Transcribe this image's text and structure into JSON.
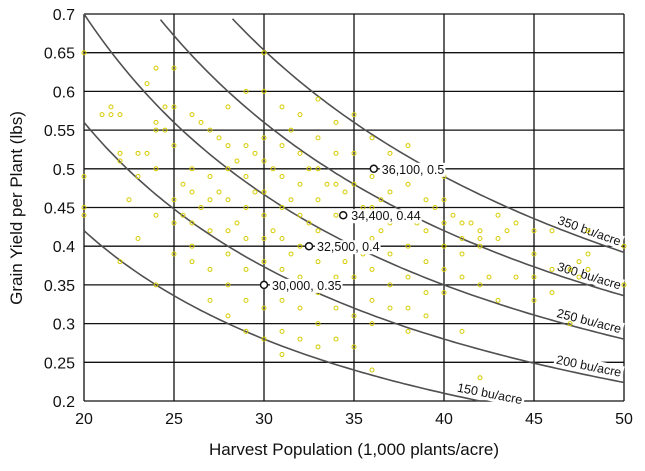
{
  "chart_data": {
    "type": "scatter",
    "title": "",
    "xlabel": "Harvest Population (1,000 plants/acre)",
    "ylabel": "Grain Yield per Plant (lbs)",
    "xlim": [
      20,
      50
    ],
    "ylim": [
      0.2,
      0.7
    ],
    "xticks": [
      20,
      25,
      30,
      35,
      40,
      45,
      50
    ],
    "yticks": [
      0.2,
      0.25,
      0.3,
      0.35,
      0.4,
      0.45,
      0.5,
      0.55,
      0.6,
      0.65,
      0.7
    ],
    "ytick_labels": [
      "0.2",
      "0.25",
      "0.3",
      "0.35",
      "0.4",
      "0.45",
      "0.5",
      "0.55",
      "0.6",
      "0.65",
      "0.7"
    ],
    "grid": true,
    "point_color": "#d8cc00",
    "curve_color": "#505050",
    "iso_yield_curves": [
      {
        "label": "150 bu/acre",
        "bu_per_acre": 150
      },
      {
        "label": "200 bu/acre",
        "bu_per_acre": 200
      },
      {
        "label": "250 bu/acre",
        "bu_per_acre": 250
      },
      {
        "label": "300 bu/acre",
        "bu_per_acre": 300
      },
      {
        "label": "350 bu/acre",
        "bu_per_acre": 350
      }
    ],
    "highlighted_points": [
      {
        "x": 36.1,
        "y": 0.5,
        "label": "36,100, 0.5"
      },
      {
        "x": 34.4,
        "y": 0.44,
        "label": "34,400, 0.44"
      },
      {
        "x": 32.5,
        "y": 0.4,
        "label": "32,500, 0.4"
      },
      {
        "x": 30.0,
        "y": 0.35,
        "label": "30,000, 0.35"
      }
    ],
    "points": [
      [
        20,
        0.65
      ],
      [
        20,
        0.49
      ],
      [
        20,
        0.45
      ],
      [
        20,
        0.44
      ],
      [
        21,
        0.57
      ],
      [
        21.5,
        0.58
      ],
      [
        21.5,
        0.57
      ],
      [
        22,
        0.57
      ],
      [
        22,
        0.52
      ],
      [
        22,
        0.51
      ],
      [
        22,
        0.38
      ],
      [
        22.5,
        0.46
      ],
      [
        23,
        0.52
      ],
      [
        23,
        0.49
      ],
      [
        23,
        0.41
      ],
      [
        23.5,
        0.61
      ],
      [
        23.5,
        0.52
      ],
      [
        24,
        0.63
      ],
      [
        24,
        0.56
      ],
      [
        24,
        0.55
      ],
      [
        24,
        0.5
      ],
      [
        24,
        0.44
      ],
      [
        24,
        0.35
      ],
      [
        24.5,
        0.58
      ],
      [
        24.5,
        0.55
      ],
      [
        25,
        0.63
      ],
      [
        25,
        0.58
      ],
      [
        25,
        0.53
      ],
      [
        25,
        0.46
      ],
      [
        25,
        0.43
      ],
      [
        25,
        0.39
      ],
      [
        25.5,
        0.48
      ],
      [
        25.5,
        0.44
      ],
      [
        26,
        0.57
      ],
      [
        26,
        0.5
      ],
      [
        26,
        0.47
      ],
      [
        26,
        0.43
      ],
      [
        26,
        0.4
      ],
      [
        26,
        0.38
      ],
      [
        26.5,
        0.56
      ],
      [
        26.5,
        0.45
      ],
      [
        27,
        0.55
      ],
      [
        27,
        0.49
      ],
      [
        27,
        0.46
      ],
      [
        27,
        0.42
      ],
      [
        27,
        0.37
      ],
      [
        27,
        0.33
      ],
      [
        27.5,
        0.54
      ],
      [
        27.5,
        0.47
      ],
      [
        28,
        0.58
      ],
      [
        28,
        0.53
      ],
      [
        28,
        0.5
      ],
      [
        28,
        0.46
      ],
      [
        28,
        0.42
      ],
      [
        28,
        0.39
      ],
      [
        28,
        0.35
      ],
      [
        28,
        0.31
      ],
      [
        28.5,
        0.51
      ],
      [
        28.5,
        0.43
      ],
      [
        29,
        0.6
      ],
      [
        29,
        0.53
      ],
      [
        29,
        0.49
      ],
      [
        29,
        0.45
      ],
      [
        29,
        0.41
      ],
      [
        29,
        0.37
      ],
      [
        29,
        0.33
      ],
      [
        29,
        0.29
      ],
      [
        29.5,
        0.52
      ],
      [
        29.5,
        0.47
      ],
      [
        30,
        0.65
      ],
      [
        30,
        0.6
      ],
      [
        30,
        0.54
      ],
      [
        30,
        0.51
      ],
      [
        30,
        0.47
      ],
      [
        30,
        0.44
      ],
      [
        30,
        0.41
      ],
      [
        30,
        0.38
      ],
      [
        30,
        0.32
      ],
      [
        30,
        0.28
      ],
      [
        30.5,
        0.5
      ],
      [
        30.5,
        0.42
      ],
      [
        31,
        0.58
      ],
      [
        31,
        0.53
      ],
      [
        31,
        0.49
      ],
      [
        31,
        0.45
      ],
      [
        31,
        0.41
      ],
      [
        31,
        0.37
      ],
      [
        31,
        0.33
      ],
      [
        31,
        0.29
      ],
      [
        31,
        0.26
      ],
      [
        31.5,
        0.55
      ],
      [
        31.5,
        0.46
      ],
      [
        31.5,
        0.39
      ],
      [
        32,
        0.57
      ],
      [
        32,
        0.52
      ],
      [
        32,
        0.48
      ],
      [
        32,
        0.44
      ],
      [
        32,
        0.4
      ],
      [
        32,
        0.36
      ],
      [
        32,
        0.32
      ],
      [
        32,
        0.28
      ],
      [
        32.5,
        0.5
      ],
      [
        32.5,
        0.43
      ],
      [
        32.5,
        0.35
      ],
      [
        33,
        0.59
      ],
      [
        33,
        0.54
      ],
      [
        33,
        0.5
      ],
      [
        33,
        0.46
      ],
      [
        33,
        0.42
      ],
      [
        33,
        0.38
      ],
      [
        33,
        0.34
      ],
      [
        33,
        0.3
      ],
      [
        33,
        0.27
      ],
      [
        33.5,
        0.48
      ],
      [
        33.5,
        0.4
      ],
      [
        34,
        0.56
      ],
      [
        34,
        0.52
      ],
      [
        34,
        0.48
      ],
      [
        34,
        0.44
      ],
      [
        34,
        0.4
      ],
      [
        34,
        0.36
      ],
      [
        34,
        0.32
      ],
      [
        34,
        0.28
      ],
      [
        34.5,
        0.47
      ],
      [
        34.5,
        0.38
      ],
      [
        35,
        0.57
      ],
      [
        35,
        0.52
      ],
      [
        35,
        0.48
      ],
      [
        35,
        0.44
      ],
      [
        35,
        0.4
      ],
      [
        35,
        0.36
      ],
      [
        35,
        0.31
      ],
      [
        35,
        0.27
      ],
      [
        35.5,
        0.45
      ],
      [
        35.5,
        0.39
      ],
      [
        36,
        0.54
      ],
      [
        36,
        0.49
      ],
      [
        36,
        0.45
      ],
      [
        36,
        0.41
      ],
      [
        36,
        0.37
      ],
      [
        36,
        0.33
      ],
      [
        36,
        0.3
      ],
      [
        36,
        0.24
      ],
      [
        36.5,
        0.46
      ],
      [
        36.5,
        0.42
      ],
      [
        37,
        0.52
      ],
      [
        37,
        0.47
      ],
      [
        37,
        0.43
      ],
      [
        37,
        0.39
      ],
      [
        37,
        0.35
      ],
      [
        37,
        0.32
      ],
      [
        37.5,
        0.44
      ],
      [
        38,
        0.53
      ],
      [
        38,
        0.48
      ],
      [
        38,
        0.44
      ],
      [
        38,
        0.4
      ],
      [
        38,
        0.36
      ],
      [
        38,
        0.32
      ],
      [
        38,
        0.29
      ],
      [
        38.5,
        0.43
      ],
      [
        39,
        0.5
      ],
      [
        39,
        0.46
      ],
      [
        39,
        0.42
      ],
      [
        39,
        0.38
      ],
      [
        39,
        0.34
      ],
      [
        39,
        0.31
      ],
      [
        39.5,
        0.45
      ],
      [
        40,
        0.49
      ],
      [
        40,
        0.46
      ],
      [
        40,
        0.43
      ],
      [
        40,
        0.4
      ],
      [
        40,
        0.37
      ],
      [
        40,
        0.34
      ],
      [
        40.5,
        0.44
      ],
      [
        41,
        0.43
      ],
      [
        41,
        0.41
      ],
      [
        41,
        0.39
      ],
      [
        41,
        0.36
      ],
      [
        41,
        0.29
      ],
      [
        41.5,
        0.43
      ],
      [
        42,
        0.42
      ],
      [
        42,
        0.41
      ],
      [
        42,
        0.4
      ],
      [
        42,
        0.35
      ],
      [
        42,
        0.23
      ],
      [
        42.5,
        0.36
      ],
      [
        43,
        0.44
      ],
      [
        43,
        0.41
      ],
      [
        43,
        0.33
      ],
      [
        43.5,
        0.42
      ],
      [
        44,
        0.43
      ],
      [
        44,
        0.36
      ],
      [
        45,
        0.42
      ],
      [
        45,
        0.39
      ],
      [
        45,
        0.36
      ],
      [
        45,
        0.33
      ],
      [
        46,
        0.42
      ],
      [
        46,
        0.37
      ],
      [
        46,
        0.34
      ],
      [
        47,
        0.37
      ],
      [
        47,
        0.3
      ],
      [
        47.5,
        0.38
      ],
      [
        47.5,
        0.36
      ],
      [
        48,
        0.42
      ],
      [
        48,
        0.39
      ],
      [
        48,
        0.37
      ],
      [
        50,
        0.4
      ],
      [
        50,
        0.35
      ]
    ]
  }
}
